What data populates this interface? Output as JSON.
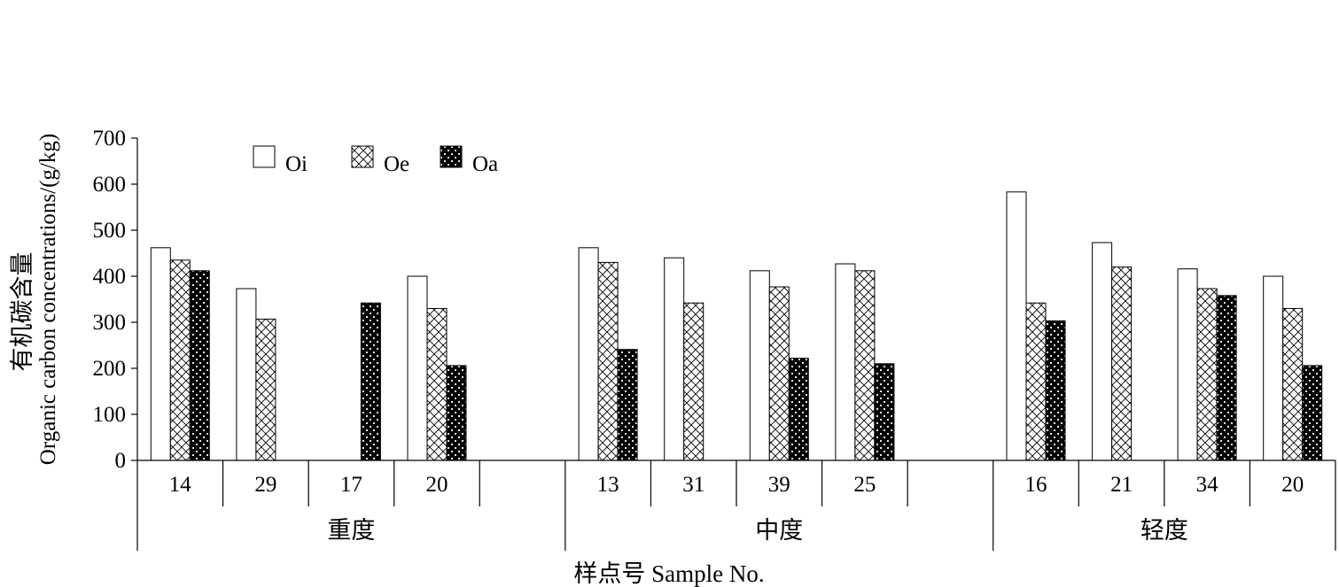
{
  "chart_data": {
    "type": "bar",
    "ylabel_cn": "有机碳含量",
    "ylabel_en": "Organic carbon concentrations/(g/kg)",
    "xlabel": "样点号 Sample No.",
    "ylim": [
      0,
      700
    ],
    "yticks": [
      0,
      100,
      200,
      300,
      400,
      500,
      600,
      700
    ],
    "legend_position": "top-left",
    "grid": false,
    "series": [
      {
        "name": "Oi",
        "pattern": "white"
      },
      {
        "name": "Oe",
        "pattern": "crosshatch"
      },
      {
        "name": "Oa",
        "pattern": "dots"
      }
    ],
    "groups": [
      {
        "label": "重度",
        "samples": [
          {
            "label": "14",
            "values": [
              462,
              435,
              412
            ]
          },
          {
            "label": "29",
            "values": [
              373,
              307,
              null
            ]
          },
          {
            "label": "17",
            "values": [
              null,
              null,
              342
            ]
          },
          {
            "label": "20",
            "values": [
              400,
              330,
              206
            ]
          },
          {
            "label": "",
            "values": [
              null,
              null,
              null
            ]
          }
        ]
      },
      {
        "label": "中度",
        "samples": [
          {
            "label": "13",
            "values": [
              462,
              430,
              241
            ]
          },
          {
            "label": "31",
            "values": [
              440,
              342,
              null
            ]
          },
          {
            "label": "39",
            "values": [
              412,
              377,
              222
            ]
          },
          {
            "label": "25",
            "values": [
              427,
              412,
              210
            ]
          },
          {
            "label": "",
            "values": [
              null,
              null,
              null
            ]
          }
        ]
      },
      {
        "label": "轻度",
        "samples": [
          {
            "label": "16",
            "values": [
              583,
              342,
              303
            ]
          },
          {
            "label": "21",
            "values": [
              473,
              420,
              null
            ]
          },
          {
            "label": "34",
            "values": [
              416,
              373,
              358
            ]
          },
          {
            "label": "20",
            "values": [
              400,
              330,
              206
            ]
          }
        ]
      }
    ]
  }
}
